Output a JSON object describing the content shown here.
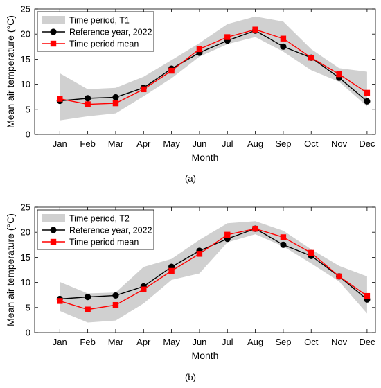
{
  "chart_data": [
    {
      "type": "line",
      "panel_label": "(a)",
      "xlabel": "Month",
      "ylabel": "Mean air temperature (°C)",
      "ylim": [
        0,
        25
      ],
      "yticks": [
        0,
        5,
        10,
        15,
        20,
        25
      ],
      "categories": [
        "Jan",
        "Feb",
        "Mar",
        "Apr",
        "May",
        "Jun",
        "Jul",
        "Aug",
        "Sep",
        "Oct",
        "Nov",
        "Dec"
      ],
      "legend_position": "top-left",
      "grid": false,
      "band": {
        "name": "Time period, T1",
        "color": "#d0d0d0",
        "low": [
          2.8,
          3.6,
          4.2,
          7.6,
          11.2,
          15.5,
          18.0,
          19.4,
          16.5,
          12.8,
          10.5,
          5.6
        ],
        "high": [
          12.2,
          9.0,
          9.3,
          11.5,
          14.8,
          18.2,
          22.0,
          23.5,
          22.5,
          17.0,
          13.2,
          12.5
        ]
      },
      "series": [
        {
          "name": "Reference year, 2022",
          "color": "#000000",
          "marker": "circle",
          "values": [
            6.7,
            7.2,
            7.4,
            9.3,
            13.1,
            16.3,
            18.7,
            20.7,
            17.5,
            15.3,
            11.3,
            6.6
          ]
        },
        {
          "name": "Time period mean",
          "color": "#ff0000",
          "marker": "square",
          "values": [
            7.1,
            6.0,
            6.2,
            9.0,
            12.7,
            17.0,
            19.4,
            20.9,
            19.1,
            15.3,
            12.0,
            8.3
          ]
        }
      ]
    },
    {
      "type": "line",
      "panel_label": "(b)",
      "xlabel": "Month",
      "ylabel": "Mean air temperature (°C)",
      "ylim": [
        0,
        25
      ],
      "yticks": [
        0,
        5,
        10,
        15,
        20,
        25
      ],
      "categories": [
        "Jan",
        "Feb",
        "Mar",
        "Apr",
        "May",
        "Jun",
        "Jul",
        "Aug",
        "Sep",
        "Oct",
        "Nov",
        "Dec"
      ],
      "legend_position": "top-left",
      "grid": false,
      "band": {
        "name": "Time period, T2",
        "color": "#d0d0d0",
        "low": [
          4.3,
          2.0,
          2.4,
          5.8,
          10.5,
          11.8,
          18.0,
          19.6,
          17.2,
          13.8,
          10.2,
          3.8
        ],
        "high": [
          10.1,
          7.8,
          8.0,
          13.1,
          14.7,
          18.5,
          21.8,
          22.2,
          20.3,
          16.6,
          13.3,
          11.2
        ]
      },
      "series": [
        {
          "name": "Reference year, 2022",
          "color": "#000000",
          "marker": "circle",
          "values": [
            6.7,
            7.1,
            7.4,
            9.2,
            13.1,
            16.3,
            18.7,
            20.7,
            17.5,
            15.3,
            11.2,
            6.6
          ]
        },
        {
          "name": "Time period mean",
          "color": "#ff0000",
          "marker": "square",
          "values": [
            6.3,
            4.6,
            5.5,
            8.6,
            12.3,
            15.7,
            19.5,
            20.7,
            19.0,
            15.9,
            11.2,
            7.3
          ]
        }
      ]
    }
  ]
}
